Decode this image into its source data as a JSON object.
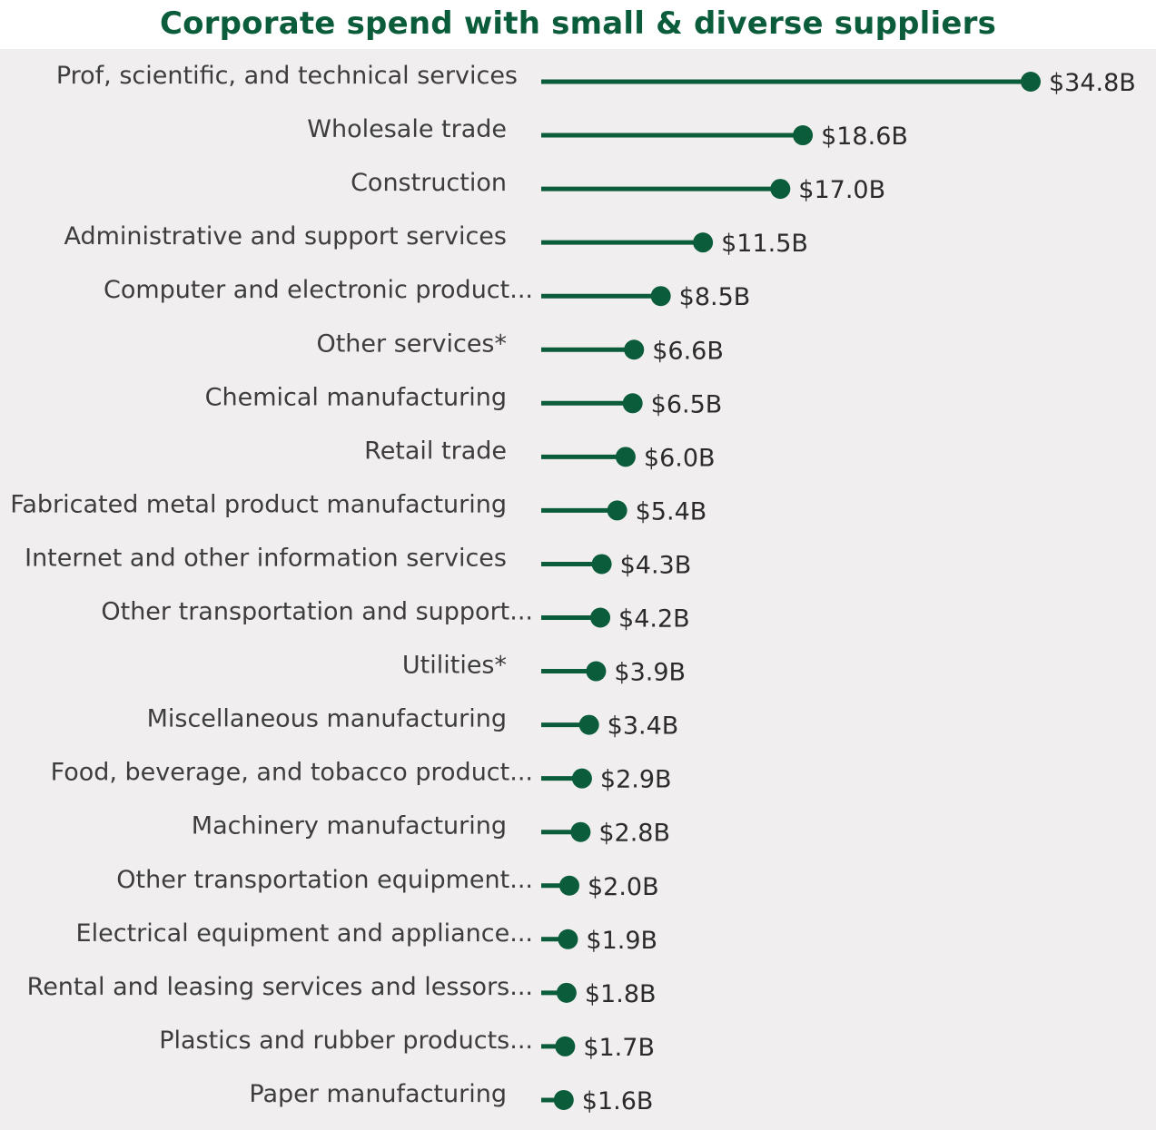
{
  "colors": {
    "accent": "#0b5c3b",
    "panel_background": "#f0eeee",
    "label_text": "#3d3d3d",
    "value_text": "#2b2b2b"
  },
  "chart_data": {
    "type": "bar",
    "style": "lollipop-horizontal",
    "title": "Corporate spend with small & diverse suppliers",
    "xlabel": "",
    "ylabel": "",
    "grid": false,
    "legend": "none",
    "xlim": [
      0,
      34.8
    ],
    "unit": "$B",
    "categories": [
      "Prof, scientific, and technical services",
      "Wholesale trade",
      "Construction",
      "Administrative and support services",
      "Computer and electronic product...",
      "Other services*",
      "Chemical manufacturing",
      "Retail trade",
      "Fabricated metal product manufacturing",
      "Internet and other information services",
      "Other transportation and support...",
      "Utilities*",
      "Miscellaneous manufacturing",
      "Food, beverage, and tobacco product...",
      "Machinery manufacturing",
      "Other transportation equipment...",
      "Electrical equipment and appliance...",
      "Rental and leasing services and lessors...",
      "Plastics and rubber products...",
      "Paper manufacturing"
    ],
    "values": [
      34.8,
      18.6,
      17.0,
      11.5,
      8.5,
      6.6,
      6.5,
      6.0,
      5.4,
      4.3,
      4.2,
      3.9,
      3.4,
      2.9,
      2.8,
      2.0,
      1.9,
      1.8,
      1.7,
      1.6
    ],
    "data_labels": [
      "$34.8B",
      "$18.6B",
      "$17.0B",
      "$11.5B",
      "$8.5B",
      "$6.6B",
      "$6.5B",
      "$6.0B",
      "$5.4B",
      "$4.3B",
      "$4.2B",
      "$3.9B",
      "$3.4B",
      "$2.9B",
      "$2.8B",
      "$2.0B",
      "$1.9B",
      "$1.8B",
      "$1.7B",
      "$1.6B"
    ]
  }
}
